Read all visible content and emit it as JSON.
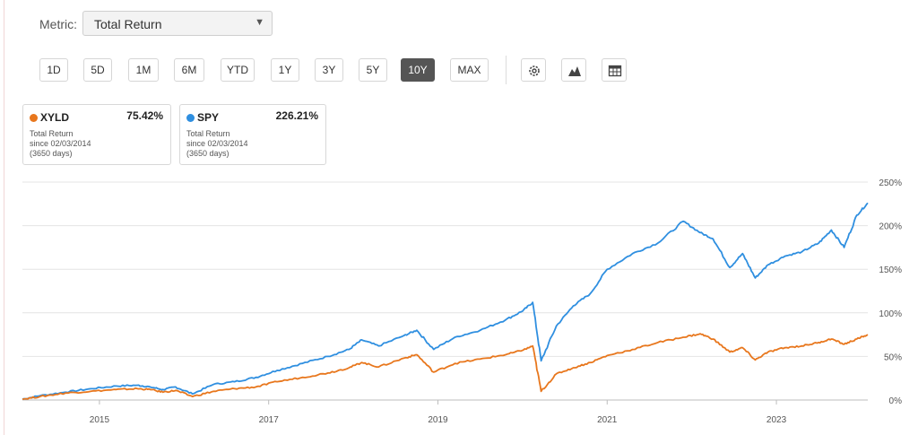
{
  "metric": {
    "label": "Metric:",
    "selected": "Total Return"
  },
  "ranges": [
    "1D",
    "5D",
    "1M",
    "6M",
    "YTD",
    "1Y",
    "3Y",
    "5Y",
    "10Y",
    "MAX"
  ],
  "active_range": "10Y",
  "tools": [
    {
      "icon": "gear-icon"
    },
    {
      "icon": "mountain-chart-icon"
    },
    {
      "icon": "table-icon"
    }
  ],
  "legend": [
    {
      "ticker": "XYLD",
      "value": "75.42%",
      "metric": "Total Return",
      "since": "since 02/03/2014",
      "days": "(3650 days)",
      "color": "#e8771d"
    },
    {
      "ticker": "SPY",
      "value": "226.21%",
      "metric": "Total Return",
      "since": "since 02/03/2014",
      "days": "(3650 days)",
      "color": "#2f8fe0"
    }
  ],
  "chart_data": {
    "type": "line",
    "title": "",
    "xlabel": "",
    "ylabel": "",
    "x_ticks": [
      "2015",
      "2017",
      "2019",
      "2021",
      "2023"
    ],
    "y_ticks": [
      "0%",
      "50%",
      "100%",
      "150%",
      "200%",
      "250%"
    ],
    "ylim": [
      0,
      250
    ],
    "xlim": [
      2014.09,
      2024.08
    ],
    "grid": true,
    "legend_position": "top-left",
    "series": [
      {
        "name": "SPY",
        "color": "#2f8fe0",
        "x": [
          2014.09,
          2014.3,
          2014.6,
          2014.9,
          2015.2,
          2015.45,
          2015.6,
          2015.75,
          2015.9,
          2016.1,
          2016.35,
          2016.6,
          2016.85,
          2017.1,
          2017.4,
          2017.7,
          2017.95,
          2018.1,
          2018.3,
          2018.6,
          2018.75,
          2018.95,
          2019.2,
          2019.5,
          2019.8,
          2020.0,
          2020.12,
          2020.22,
          2020.4,
          2020.6,
          2020.8,
          2021.0,
          2021.3,
          2021.6,
          2021.9,
          2022.1,
          2022.25,
          2022.45,
          2022.6,
          2022.75,
          2022.9,
          2023.1,
          2023.3,
          2023.5,
          2023.65,
          2023.8,
          2023.95,
          2024.08
        ],
        "y": [
          1,
          5,
          9,
          13,
          16,
          17,
          15,
          12,
          15,
          7,
          18,
          21,
          26,
          34,
          42,
          50,
          58,
          69,
          62,
          74,
          80,
          58,
          72,
          80,
          92,
          102,
          112,
          45,
          85,
          108,
          122,
          150,
          168,
          180,
          205,
          192,
          185,
          152,
          168,
          140,
          155,
          165,
          170,
          180,
          195,
          175,
          212,
          226
        ]
      },
      {
        "name": "XYLD",
        "color": "#e8771d",
        "x": [
          2014.09,
          2014.3,
          2014.6,
          2014.9,
          2015.2,
          2015.45,
          2015.6,
          2015.75,
          2015.9,
          2016.1,
          2016.35,
          2016.6,
          2016.85,
          2017.1,
          2017.4,
          2017.7,
          2017.95,
          2018.1,
          2018.3,
          2018.6,
          2018.75,
          2018.95,
          2019.2,
          2019.5,
          2019.8,
          2020.0,
          2020.12,
          2020.22,
          2020.4,
          2020.6,
          2020.8,
          2021.0,
          2021.3,
          2021.6,
          2021.9,
          2022.1,
          2022.25,
          2022.45,
          2022.6,
          2022.75,
          2022.9,
          2023.1,
          2023.3,
          2023.5,
          2023.65,
          2023.8,
          2023.95,
          2024.08
        ],
        "y": [
          1,
          4,
          8,
          10,
          12,
          13,
          12,
          9,
          11,
          4,
          10,
          13,
          15,
          21,
          26,
          31,
          37,
          43,
          38,
          48,
          52,
          32,
          42,
          47,
          52,
          57,
          62,
          10,
          30,
          37,
          43,
          51,
          58,
          66,
          72,
          76,
          70,
          55,
          60,
          46,
          55,
          60,
          62,
          66,
          70,
          64,
          70,
          75
        ]
      }
    ]
  }
}
